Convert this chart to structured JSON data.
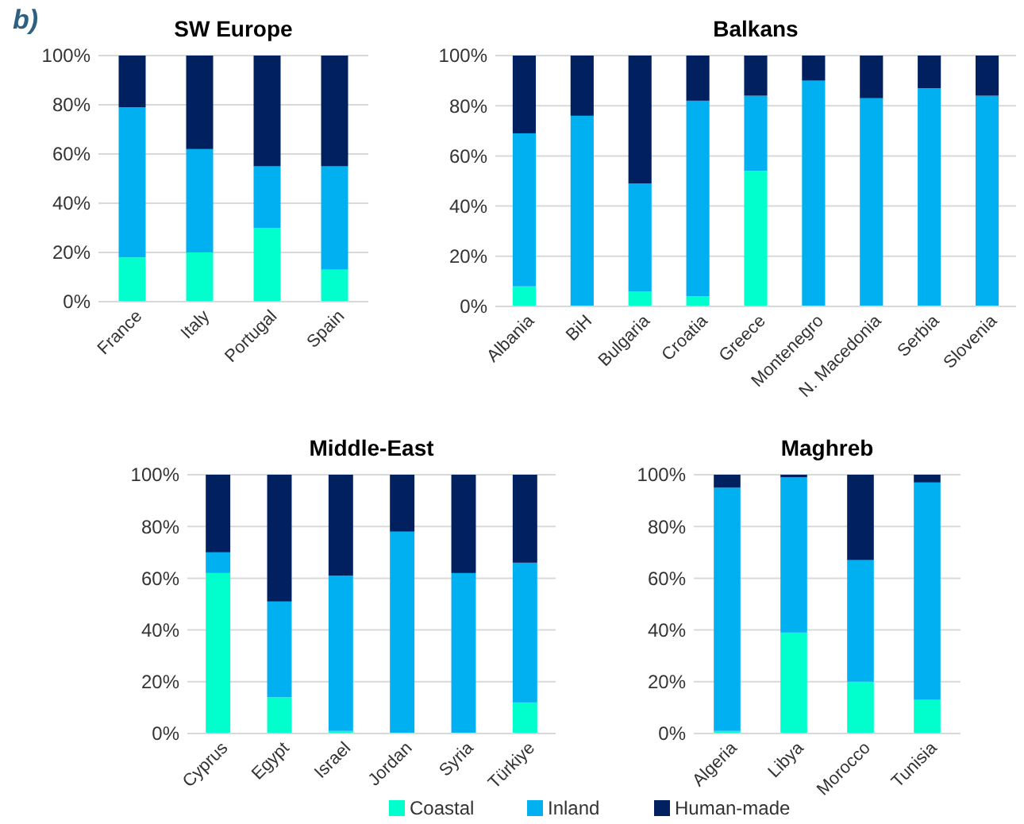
{
  "chart_data": [
    {
      "type": "bar",
      "stacked": true,
      "title": "SW Europe",
      "annotations": [
        "b)"
      ],
      "categories": [
        "France",
        "Italy",
        "Portugal",
        "Spain"
      ],
      "series": [
        {
          "name": "Coastal",
          "color": "#00ffcc",
          "values": [
            18,
            20,
            30,
            13
          ]
        },
        {
          "name": "Inland",
          "color": "#00b0f0",
          "values": [
            61,
            42,
            25,
            42
          ]
        },
        {
          "name": "Human-made",
          "color": "#002060",
          "values": [
            21,
            38,
            45,
            45
          ]
        }
      ],
      "ylim": [
        0,
        100
      ],
      "yticks": [
        {
          "value": 0,
          "label": "0%"
        },
        {
          "value": 20,
          "label": "20%"
        },
        {
          "value": 40,
          "label": "40%"
        },
        {
          "value": 60,
          "label": "60%"
        },
        {
          "value": 80,
          "label": "80%"
        },
        {
          "value": 100,
          "label": "100%"
        }
      ],
      "grid": "y",
      "legend": "bottom"
    },
    {
      "type": "bar",
      "stacked": true,
      "title": "Balkans",
      "categories": [
        "Albania",
        "BiH",
        "Bulgaria",
        "Croatia",
        "Greece",
        "Montenegro",
        "N. Macedonia",
        "Serbia",
        "Slovenia"
      ],
      "series": [
        {
          "color": "#00ffcc",
          "values": [
            8,
            0,
            6,
            4,
            54,
            0,
            0,
            0,
            0
          ]
        },
        {
          "color": "#00b0f0",
          "values": [
            61,
            76,
            43,
            78,
            30,
            90,
            83,
            87,
            84
          ]
        },
        {
          "color": "#002060",
          "values": [
            31,
            24,
            51,
            18,
            16,
            10,
            17,
            13,
            16
          ]
        }
      ],
      "ylim": [
        0,
        100
      ],
      "yticks": [
        {
          "value": 0,
          "label": "0%"
        },
        {
          "value": 20,
          "label": "20%"
        },
        {
          "value": 40,
          "label": "40%"
        },
        {
          "value": 60,
          "label": "60%"
        },
        {
          "value": 80,
          "label": "80%"
        },
        {
          "value": 100,
          "label": "100%"
        }
      ],
      "grid": "y"
    },
    {
      "type": "bar",
      "stacked": true,
      "title": "Middle-East",
      "categories": [
        "Cyprus",
        "Egypt",
        "Israel",
        "Jordan",
        "Syria",
        "Türkiye"
      ],
      "series": [
        {
          "color": "#00ffcc",
          "values": [
            62,
            14,
            1,
            0,
            0,
            12
          ]
        },
        {
          "color": "#00b0f0",
          "values": [
            8,
            37,
            60,
            78,
            62,
            54
          ]
        },
        {
          "color": "#002060",
          "values": [
            30,
            49,
            39,
            22,
            38,
            34
          ]
        }
      ],
      "ylim": [
        0,
        100
      ],
      "yticks": [
        {
          "value": 0,
          "label": "0%"
        },
        {
          "value": 20,
          "label": "20%"
        },
        {
          "value": 40,
          "label": "40%"
        },
        {
          "value": 60,
          "label": "60%"
        },
        {
          "value": 80,
          "label": "80%"
        },
        {
          "value": 100,
          "label": "100%"
        }
      ],
      "grid": "y"
    },
    {
      "type": "bar",
      "stacked": true,
      "title": "Maghreb",
      "categories": [
        "Algeria",
        "Libya",
        "Morocco",
        "Tunisia"
      ],
      "series": [
        {
          "color": "#00ffcc",
          "values": [
            1,
            39,
            20,
            13
          ]
        },
        {
          "color": "#00b0f0",
          "values": [
            94,
            60,
            47,
            84
          ]
        },
        {
          "color": "#002060",
          "values": [
            5,
            1,
            33,
            3
          ]
        }
      ],
      "ylim": [
        0,
        100
      ],
      "yticks": [
        {
          "value": 0,
          "label": "0%"
        },
        {
          "value": 20,
          "label": "20%"
        },
        {
          "value": 40,
          "label": "40%"
        },
        {
          "value": 60,
          "label": "60%"
        },
        {
          "value": 80,
          "label": "80%"
        },
        {
          "value": 100,
          "label": "100%"
        }
      ],
      "grid": "y"
    }
  ]
}
